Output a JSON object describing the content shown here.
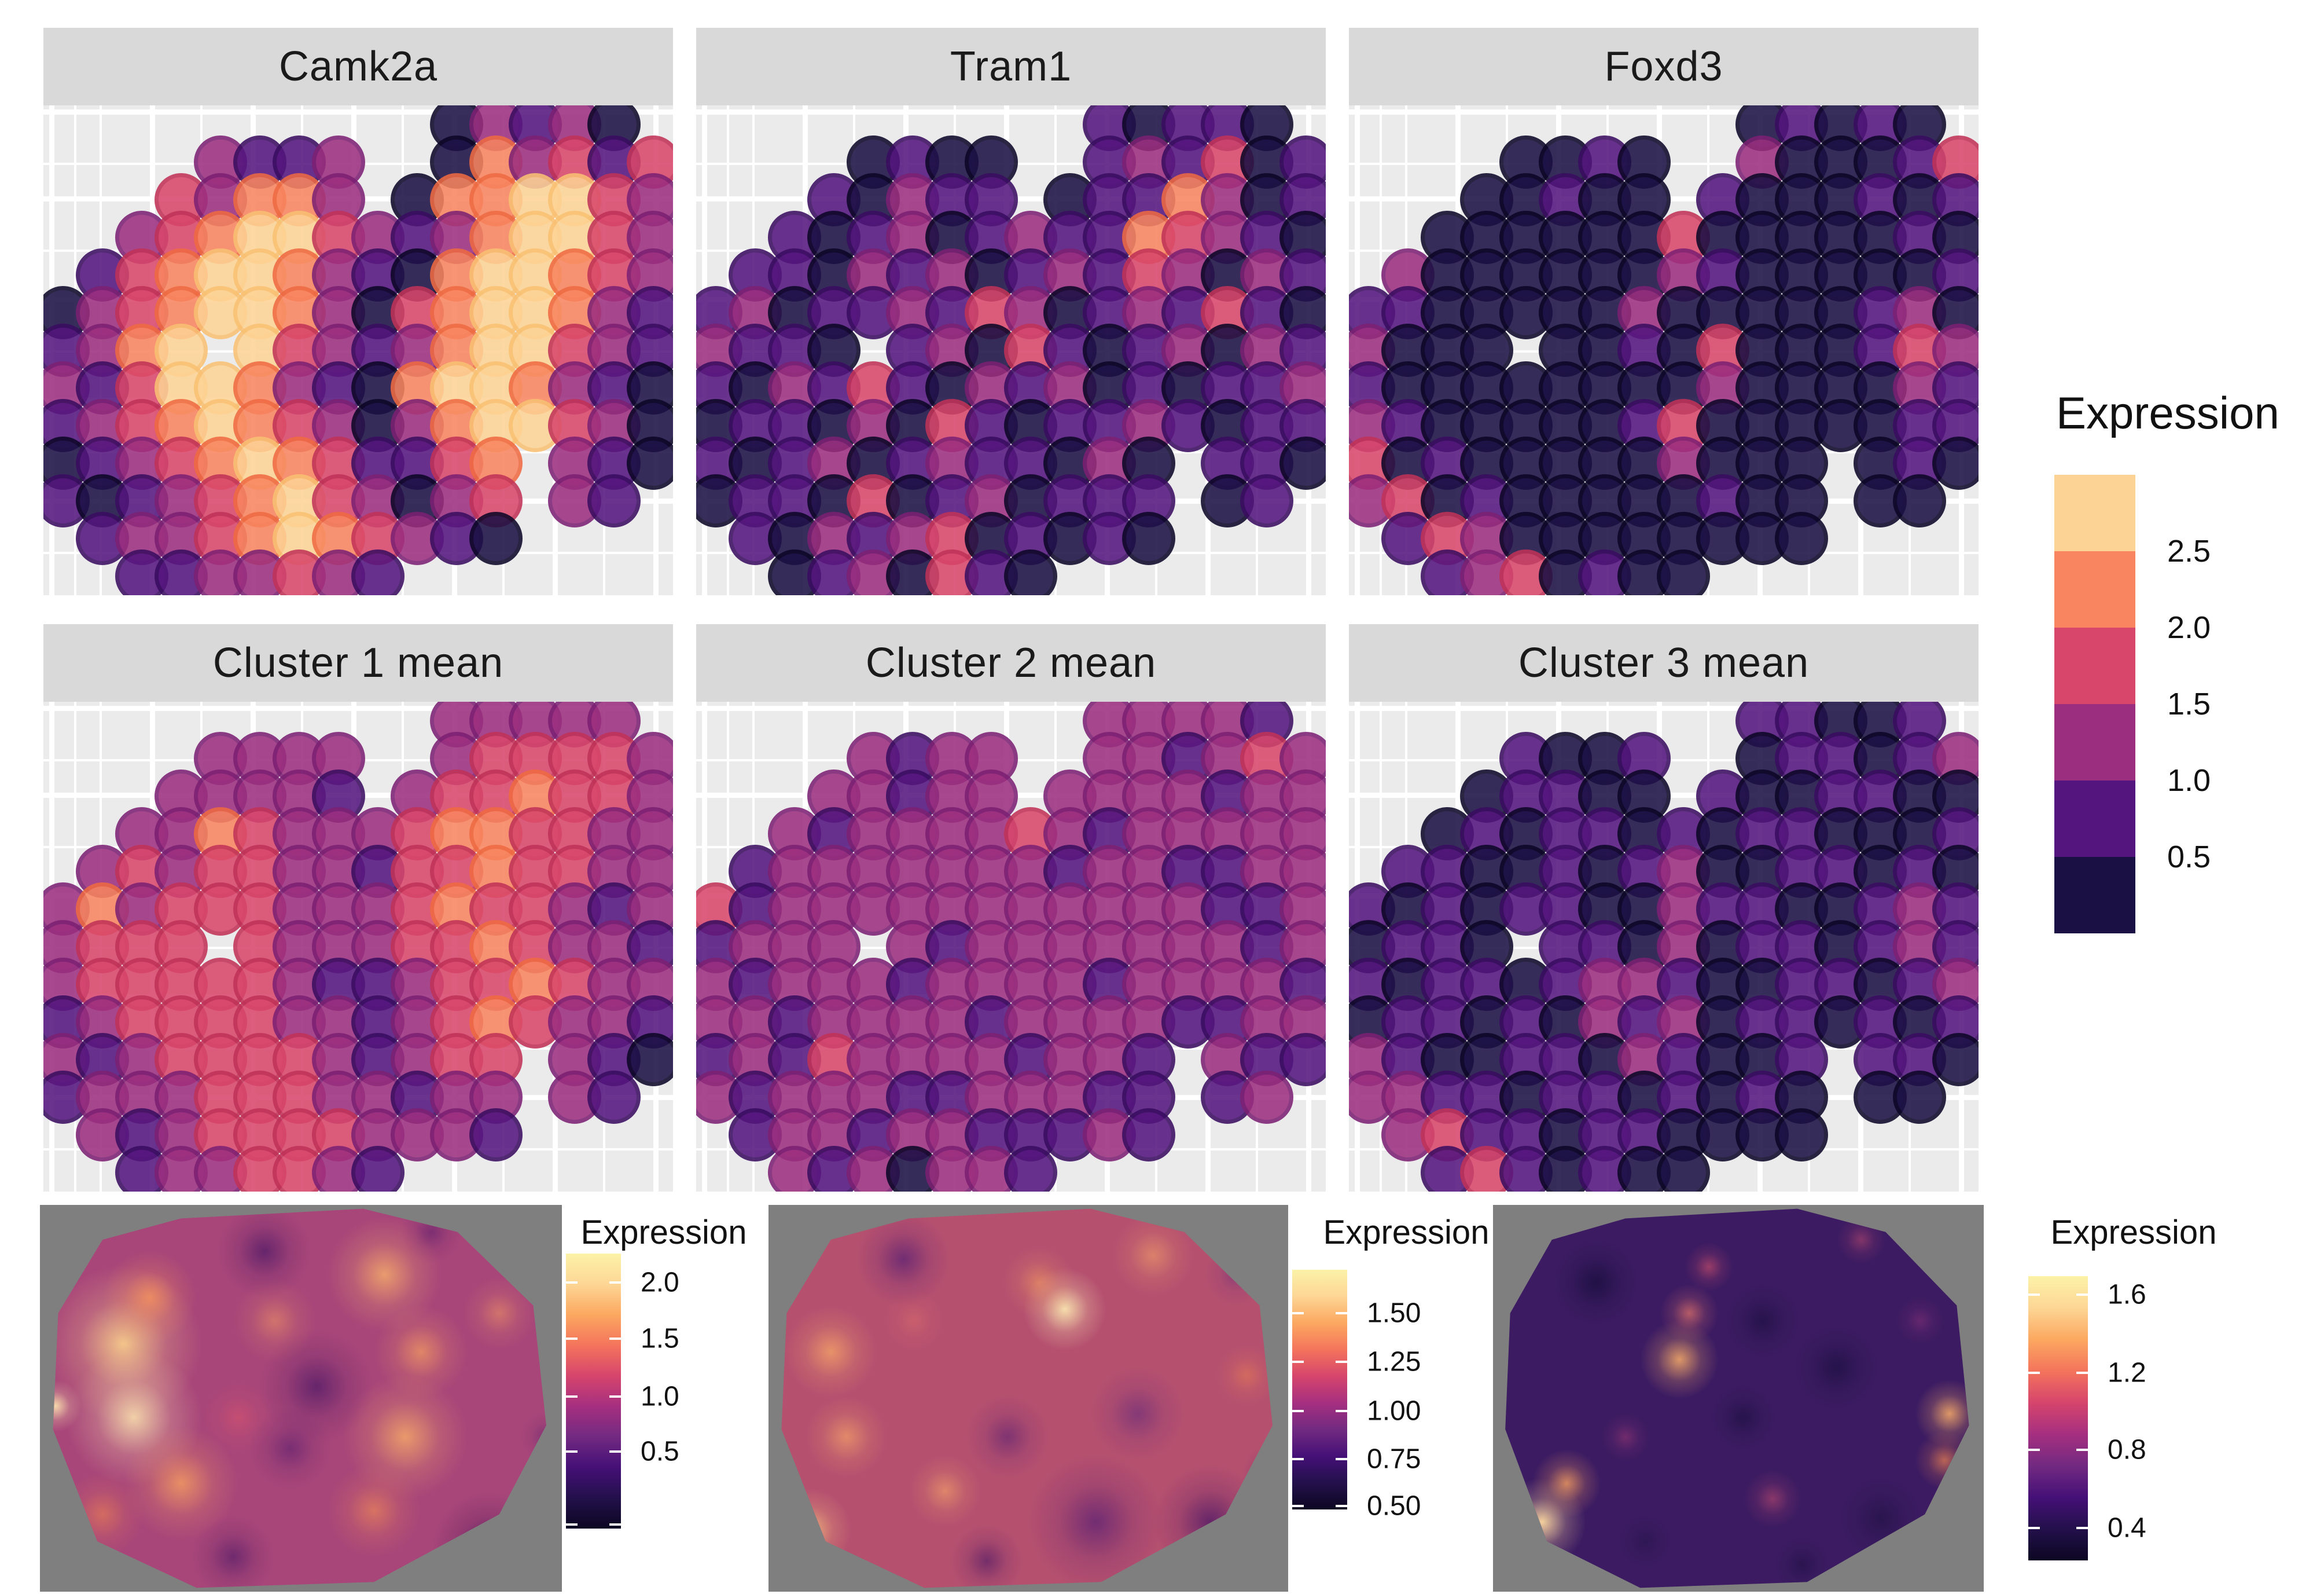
{
  "colors": {
    "background": "#ffffff",
    "strip_background": "#d9d9d9",
    "panel_background": "#ebebeb",
    "gridline": "#ffffff",
    "heatmap_background": "#7f7f7f",
    "text": "#111111",
    "magma_stops_top_to_bottom": [
      "#fcf2a8",
      "#fdd695",
      "#fca860",
      "#f4745c",
      "#d6456c",
      "#a62f80",
      "#722a81",
      "#451077",
      "#23104b",
      "#0c0722"
    ]
  },
  "spot_bins": {
    "encoding": "grid rows of 16 chars; '.' = no spot; digits 0-5 = binned expression level low to high",
    "bin_ranges_low_to_high": [
      "<0.5",
      "0.5-1.0",
      "1.0-1.5",
      "1.5-2.0",
      "2.0-2.5",
      ">2.5"
    ],
    "fills": [
      "#1b1044",
      "#54157e",
      "#9c2e7f",
      "#d9466b",
      "#f8855f",
      "#fdd395"
    ],
    "strokes": [
      "#0c0627",
      "#3a0d61",
      "#7c2073",
      "#c13258",
      "#ef6a42",
      "#f9c173"
    ]
  },
  "main_legend": {
    "title": "Expression",
    "labels_top_to_bottom": [
      "2.5",
      "2.0",
      "1.5",
      "1.0",
      "0.5"
    ]
  },
  "chart_data": {
    "types": [
      "scatter (binned spatial spots) x6",
      "heatmap (smoothed spatial) x3"
    ],
    "value_label": "Expression",
    "spot_panels": [
      {
        "title": "Camk2a",
        "grid": [
          "..........02120.",
          "....2112..042313",
          "...32442.0445532",
          "..23455321245532",
          ".134554210455432",
          "0234554203455421",
          "1245.53212455321",
          "2135542104554210",
          "1234543202455320",
          "012345431134.210",
          "101234532023.21.",
          ".12234543210....",
          "..1122321......."
        ]
      },
      {
        "title": "Tram1",
        "grid": [
          "..........10110.",
          "....0100..121301",
          "...10211.0114201",
          "..10120121143210",
          ".110212012132021",
          "1201121320121310",
          "2110.12031012021",
          "1021310212010112",
          "0110203101121011",
          "101201211020.110",
          "011030120111.01.",
          ".10212301010....",
          "..0120310......."
        ]
      },
      {
        "title": "Foxd3",
        "grid": [
          "..........01010.",
          "....0010..200013",
          "...00100.1000101",
          "..00000030000010",
          ".200000021000001",
          "1100000200000120",
          "2000.00103000132",
          "1000000002000021",
          "2100000130000011",
          "301000002000.010",
          "230100000100.00.",
          ".13200000000....",
          "..1230100......."
        ]
      },
      {
        "title": "Cluster 1 mean",
        "grid": [
          "..........22222.",
          "....2222..233332",
          "...22221.2334332",
          "..22432223443322",
          ".232332213343322",
          "2423332223433212",
          "2333.32223343221",
          "2333332112334322",
          "1233332212343221",
          "212333321233.210",
          "122233322122.21.",
          ".21233332221....",
          "..1223321......."
        ]
      },
      {
        "title": "Cluster 2 mean",
        "grid": [
          "..........22221.",
          "....2122..221232",
          "...22122.2222122",
          "..21222232122222",
          ".122222221221122",
          "3122222222222112",
          "1222.21222222212",
          "2122212222122221",
          "2212222122221122",
          "121322221221.211",
          "212221122211.12.",
          ".12212211121....",
          "..2120221......."
        ]
      },
      {
        "title": "Cluster 3 mean",
        "grid": [
          "..........11001.",
          "....1001..011012",
          "...01100.1001100",
          "..01011010110001",
          ".110010120011010",
          "1010110021100121",
          "0110.11020110121",
          "1011012210011012",
          "0110102120110101",
          "210011021001.110",
          "221101101010.00.",
          ".23110110000....",
          "..1310100......."
        ]
      }
    ],
    "heatmaps": [
      {
        "legend_title": "Expression",
        "legend_ticks": [
          {
            "label": "2.0",
            "pos": 0.105
          },
          {
            "label": "1.5",
            "pos": 0.31
          },
          {
            "label": "1.0",
            "pos": 0.52
          },
          {
            "label": "0.5",
            "pos": 0.72
          },
          {
            "label": "",
            "pos": 0.985
          }
        ],
        "base": "#a84679",
        "polygon": "27% 3.5%, 62% 1%, 80% 7%, 94.5% 26%, 97% 57%, 88% 80%, 64% 97.5%, 30% 99%, 11% 87%, 2.5% 58%, 3.5% 28%, 12% 9%",
        "blobs": [
          [
            16,
            36,
            15,
            "#fbd28c",
            0.9
          ],
          [
            18,
            55,
            13,
            "#fde7b0",
            0.85
          ],
          [
            21,
            24,
            9,
            "#f8965c",
            0.8
          ],
          [
            27,
            72,
            11,
            "#f8a060",
            0.8
          ],
          [
            12,
            80,
            8,
            "#ef8350",
            0.6
          ],
          [
            3,
            52,
            5,
            "#fde7b0",
            0.9
          ],
          [
            45,
            30,
            8,
            "#f8a060",
            0.5
          ],
          [
            66,
            18,
            11,
            "#f9b06a",
            0.8
          ],
          [
            73,
            38,
            9,
            "#f8a060",
            0.7
          ],
          [
            70,
            60,
            12,
            "#f9ad68",
            0.8
          ],
          [
            64,
            79,
            9,
            "#f08a56",
            0.65
          ],
          [
            88,
            28,
            7,
            "#f8a060",
            0.5
          ],
          [
            38,
            55,
            7,
            "#e0566b",
            0.5
          ],
          [
            43,
            12,
            9,
            "#4a1766",
            0.7
          ],
          [
            53,
            47,
            11,
            "#4a1766",
            0.7
          ],
          [
            48,
            63,
            8,
            "#521a6e",
            0.55
          ],
          [
            86,
            89,
            11,
            "#3f1257",
            0.8
          ],
          [
            37,
            91,
            8,
            "#4a1766",
            0.6
          ],
          [
            75,
            7,
            6,
            "#52186b",
            0.5
          ],
          [
            97,
            60,
            5,
            "#5a2170",
            0.5
          ]
        ]
      },
      {
        "legend_title": "Expression",
        "legend_ticks": [
          {
            "label": "1.50",
            "pos": 0.18
          },
          {
            "label": "1.25",
            "pos": 0.385
          },
          {
            "label": "1.00",
            "pos": 0.59
          },
          {
            "label": "0.75",
            "pos": 0.79
          },
          {
            "label": "0.50",
            "pos": 0.985
          }
        ],
        "base": "#b5506f",
        "polygon": "27% 3.5%, 62% 1%, 80% 7%, 94.5% 26%, 97% 57%, 88% 80%, 64% 97.5%, 30% 99%, 11% 87%, 2.5% 58%, 3.5% 28%, 12% 9%",
        "blobs": [
          [
            57,
            27,
            8,
            "#fdecb2",
            0.9
          ],
          [
            52,
            20,
            7,
            "#f8a060",
            0.55
          ],
          [
            12,
            38,
            9,
            "#f8a868",
            0.75
          ],
          [
            15,
            60,
            8,
            "#f8a868",
            0.65
          ],
          [
            8,
            84,
            8,
            "#fbc47e",
            0.8
          ],
          [
            34,
            74,
            7,
            "#f8a868",
            0.6
          ],
          [
            74,
            13,
            8,
            "#f8a868",
            0.55
          ],
          [
            92,
            44,
            6,
            "#ef8350",
            0.5
          ],
          [
            28,
            30,
            6,
            "#e8766a",
            0.4
          ],
          [
            26,
            14,
            9,
            "#5b2173",
            0.75
          ],
          [
            46,
            60,
            8,
            "#5b2173",
            0.6
          ],
          [
            71,
            54,
            9,
            "#6a2d7a",
            0.65
          ],
          [
            63,
            82,
            13,
            "#5b2173",
            0.75
          ],
          [
            85,
            82,
            11,
            "#4a1766",
            0.75
          ],
          [
            90,
            18,
            6,
            "#6a2d7a",
            0.5
          ],
          [
            42,
            92,
            7,
            "#4a1766",
            0.6
          ],
          [
            97,
            70,
            6,
            "#5b2173",
            0.6
          ]
        ]
      },
      {
        "legend_title": "Expression",
        "legend_ticks": [
          {
            "label": "1.6",
            "pos": 0.065
          },
          {
            "label": "1.2",
            "pos": 0.34
          },
          {
            "label": "0.8",
            "pos": 0.61
          },
          {
            "label": "0.4",
            "pos": 0.885
          }
        ],
        "base": "#3c1b62",
        "polygon": "27% 3.5%, 62% 1%, 80% 7%, 94.5% 26%, 97% 57%, 88% 80%, 64% 97.5%, 30% 99%, 11% 87%, 2.5% 58%, 3.5% 28%, 12% 9%",
        "blobs": [
          [
            10,
            82,
            9,
            "#fdd9a0",
            0.95
          ],
          [
            15,
            72,
            7,
            "#f8a060",
            0.8
          ],
          [
            38,
            40,
            8,
            "#f9ad68",
            0.85
          ],
          [
            40,
            28,
            6,
            "#e8766a",
            0.7
          ],
          [
            44,
            16,
            5,
            "#d6536b",
            0.6
          ],
          [
            93,
            54,
            7,
            "#f9ad68",
            0.85
          ],
          [
            92,
            66,
            6,
            "#ef8350",
            0.7
          ],
          [
            57,
            76,
            6,
            "#c74f70",
            0.55
          ],
          [
            27,
            60,
            5,
            "#a43b77",
            0.5
          ],
          [
            75,
            9,
            5,
            "#c74f70",
            0.5
          ],
          [
            87,
            30,
            5,
            "#8d3379",
            0.5
          ],
          [
            21,
            20,
            9,
            "#190f3e",
            0.8
          ],
          [
            55,
            30,
            8,
            "#190f3e",
            0.6
          ],
          [
            70,
            42,
            9,
            "#190f3e",
            0.65
          ],
          [
            79,
            81,
            9,
            "#221346",
            0.7
          ],
          [
            51,
            55,
            7,
            "#190f3e",
            0.6
          ],
          [
            31,
            87,
            6,
            "#221346",
            0.5
          ],
          [
            63,
            93,
            6,
            "#190f3e",
            0.5
          ]
        ]
      }
    ]
  }
}
